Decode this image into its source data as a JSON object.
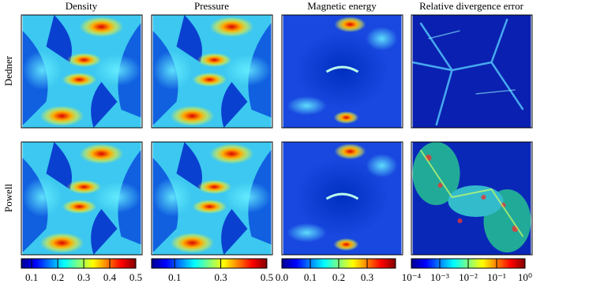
{
  "columns": [
    "Density",
    "Pressure",
    "Magnetic energy",
    "Relative divergence error"
  ],
  "rows": [
    "Dedner",
    "Powell"
  ],
  "colorbars": [
    {
      "xlim": [
        0.06,
        0.5
      ],
      "xticks": [
        0.1,
        0.2,
        0.3,
        0.4,
        0.5
      ]
    },
    {
      "xlim": [
        0.0,
        0.5
      ],
      "xticks": [
        0.1,
        0.3,
        0.5
      ]
    },
    {
      "xlim": [
        0.0,
        0.4
      ],
      "xticks": [
        {
          "value": 0.0,
          "label": "0.0"
        },
        0.1,
        0.2,
        0.3
      ]
    },
    {
      "log": true,
      "xlim": [
        0.0001,
        1
      ],
      "xticks": [
        {
          "value": 0.0001,
          "label": "10⁻⁴"
        },
        {
          "value": 0.001,
          "label": "10⁻³"
        },
        {
          "value": 0.01,
          "label": "10⁻²"
        },
        {
          "value": 0.1,
          "label": "10⁻¹"
        },
        {
          "value": 1,
          "label": "10⁰"
        }
      ]
    }
  ]
}
